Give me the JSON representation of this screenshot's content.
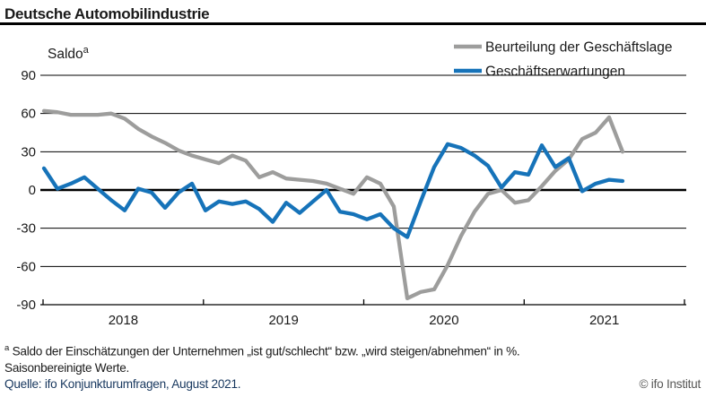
{
  "header": {
    "title": "Deutsche Automobilindustrie"
  },
  "chart_data": {
    "type": "line",
    "title": "Deutsche Automobilindustrie",
    "y_axis_label": "Saldo",
    "y_axis_label_sup": "a",
    "ylim": [
      -90,
      90
    ],
    "y_ticks": [
      90,
      60,
      30,
      0,
      -30,
      -60,
      -90
    ],
    "x_tick_years": [
      "2018",
      "2019",
      "2020",
      "2021"
    ],
    "x_frequency": "monthly",
    "x_start": "2018-01",
    "x_end": "2021-08",
    "grid": "horizontal-only",
    "legend_position": "top-right",
    "series": [
      {
        "name": "Beurteilung der Geschäftslage",
        "color": "#9d9d9c",
        "values": [
          62,
          61,
          59,
          59,
          59,
          60,
          56,
          48,
          42,
          37,
          31,
          27,
          24,
          21,
          27,
          23,
          10,
          14,
          9,
          8,
          7,
          5,
          1,
          -3,
          10,
          5,
          -13,
          -85,
          -80,
          -78,
          -59,
          -36,
          -17,
          -3,
          0,
          -10,
          -8,
          3,
          15,
          24,
          40,
          45,
          57,
          30
        ]
      },
      {
        "name": "Geschäftserwartungen",
        "color": "#1673b9",
        "values": [
          17,
          1,
          5,
          10,
          1,
          -8,
          -16,
          1,
          -2,
          -14,
          -2,
          5,
          -16,
          -9,
          -11,
          -9,
          -15,
          -25,
          -10,
          -18,
          -9,
          0,
          -17,
          -19,
          -23,
          -19,
          -30,
          -37,
          -9,
          18,
          36,
          33,
          27,
          19,
          2,
          14,
          12,
          35,
          18,
          25,
          -1,
          5,
          8,
          7
        ]
      }
    ]
  },
  "footnote": {
    "sup": "a",
    "line1": "Saldo der Einschätzungen der Unternehmen „ist gut/schlecht“ bzw. „wird steigen/abnehmen“ in %.",
    "line2": "Saisonbereinigte Werte.",
    "source": "Quelle: ifo Konjunkturumfragen, August 2021.",
    "copyright": "© ifo Institut"
  },
  "colors": {
    "line_gray": "#9d9d9c",
    "line_blue": "#1673b9",
    "source_navy": "#17375e",
    "copyright_gray": "#575756",
    "text_black": "#1a1a1a"
  }
}
